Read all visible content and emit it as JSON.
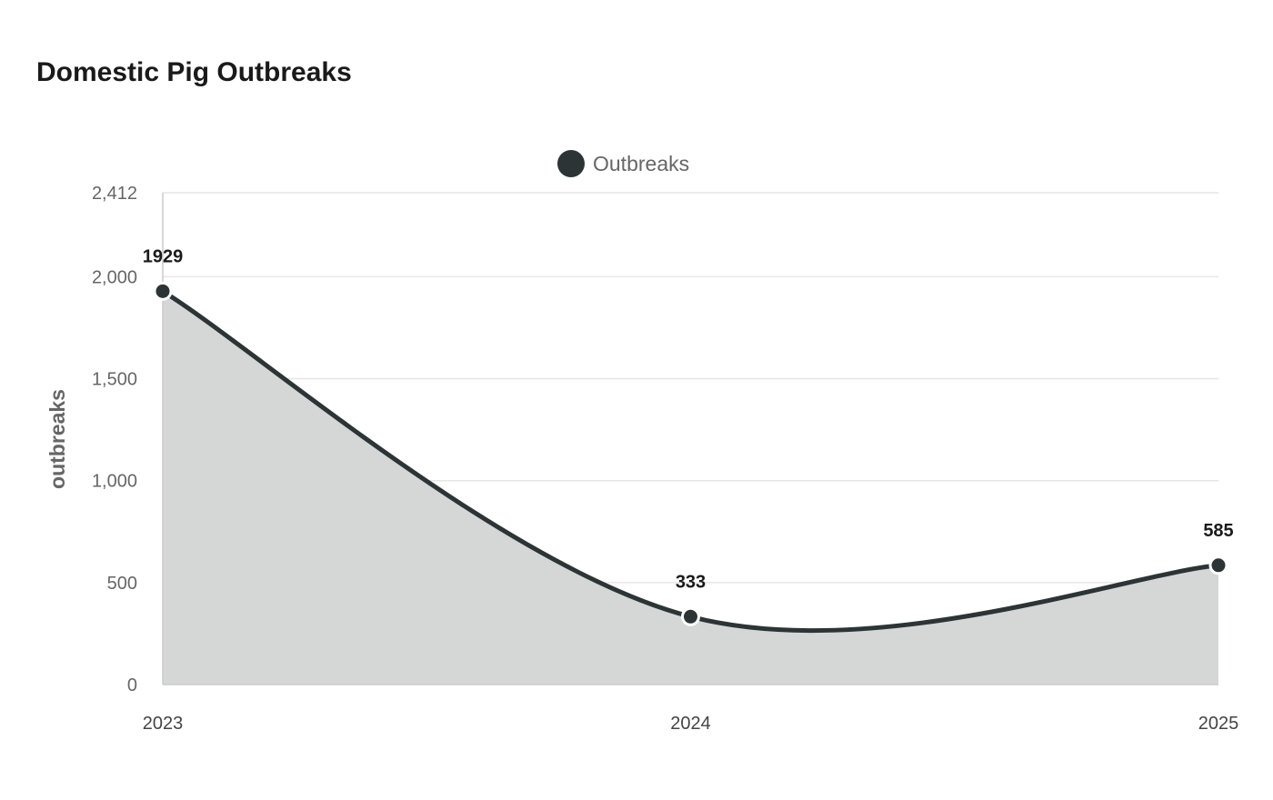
{
  "chart_data": {
    "type": "area",
    "title": "Domestic Pig Outbreaks",
    "ylabel": "outbreaks",
    "xlabel": "",
    "categories": [
      "2023",
      "2024",
      "2025"
    ],
    "series": [
      {
        "name": "Outbreaks",
        "values": [
          1929,
          333,
          585
        ]
      }
    ],
    "ylim": [
      0,
      2412
    ],
    "yticks": [
      0,
      500,
      1000,
      1500,
      2000,
      2412
    ],
    "ytick_labels": [
      "0",
      "500",
      "1,000",
      "1,500",
      "2,000",
      "2,412"
    ],
    "legend_position": "top-center",
    "grid": true,
    "colors": {
      "line": "#2d3436",
      "area": "#d5d7d7",
      "grid": "#e6e6e6",
      "axis": "#cccccc"
    }
  }
}
